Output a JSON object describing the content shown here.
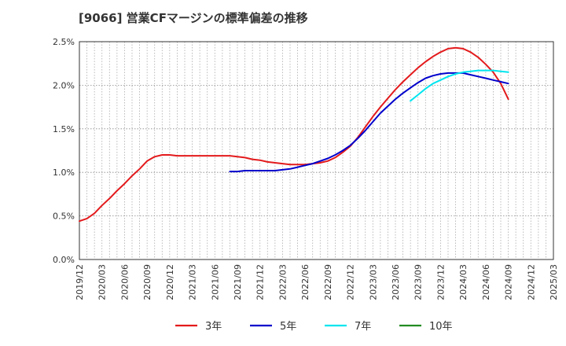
{
  "chart_data": {
    "type": "line",
    "title": "[9066]  営業CFマージンの標準偏差の推移",
    "xlabel": "",
    "ylabel": "",
    "ylim": [
      0,
      2.5
    ],
    "y_unit": "%",
    "y_ticks": [
      "0.0%",
      "0.5%",
      "1.0%",
      "1.5%",
      "2.0%",
      "2.5%"
    ],
    "x_ticks": [
      "2019/12",
      "2020/03",
      "2020/06",
      "2020/09",
      "2020/12",
      "2021/03",
      "2021/06",
      "2021/09",
      "2021/12",
      "2022/03",
      "2022/06",
      "2022/09",
      "2022/12",
      "2023/03",
      "2023/06",
      "2023/09",
      "2023/12",
      "2024/03",
      "2024/06",
      "2024/09",
      "2024/12",
      "2025/03"
    ],
    "grid": true,
    "legend_position": "bottom",
    "series": [
      {
        "name": "3年",
        "color": "#e31a1c",
        "points": [
          [
            "2019/12",
            0.44
          ],
          [
            "2020/01",
            0.47
          ],
          [
            "2020/02",
            0.53
          ],
          [
            "2020/03",
            0.62
          ],
          [
            "2020/04",
            0.7
          ],
          [
            "2020/05",
            0.79
          ],
          [
            "2020/06",
            0.87
          ],
          [
            "2020/07",
            0.96
          ],
          [
            "2020/08",
            1.04
          ],
          [
            "2020/09",
            1.13
          ],
          [
            "2020/10",
            1.18
          ],
          [
            "2020/11",
            1.2
          ],
          [
            "2020/12",
            1.2
          ],
          [
            "2021/01",
            1.19
          ],
          [
            "2021/02",
            1.19
          ],
          [
            "2021/03",
            1.19
          ],
          [
            "2021/04",
            1.19
          ],
          [
            "2021/05",
            1.19
          ],
          [
            "2021/06",
            1.19
          ],
          [
            "2021/07",
            1.19
          ],
          [
            "2021/08",
            1.19
          ],
          [
            "2021/09",
            1.18
          ],
          [
            "2021/10",
            1.17
          ],
          [
            "2021/11",
            1.15
          ],
          [
            "2021/12",
            1.14
          ],
          [
            "2022/01",
            1.12
          ],
          [
            "2022/02",
            1.11
          ],
          [
            "2022/03",
            1.1
          ],
          [
            "2022/04",
            1.09
          ],
          [
            "2022/05",
            1.09
          ],
          [
            "2022/06",
            1.09
          ],
          [
            "2022/07",
            1.1
          ],
          [
            "2022/08",
            1.11
          ],
          [
            "2022/09",
            1.13
          ],
          [
            "2022/10",
            1.17
          ],
          [
            "2022/11",
            1.23
          ],
          [
            "2022/12",
            1.3
          ],
          [
            "2023/01",
            1.4
          ],
          [
            "2023/02",
            1.52
          ],
          [
            "2023/03",
            1.64
          ],
          [
            "2023/04",
            1.75
          ],
          [
            "2023/05",
            1.85
          ],
          [
            "2023/06",
            1.95
          ],
          [
            "2023/07",
            2.04
          ],
          [
            "2023/08",
            2.12
          ],
          [
            "2023/09",
            2.2
          ],
          [
            "2023/10",
            2.27
          ],
          [
            "2023/11",
            2.33
          ],
          [
            "2023/12",
            2.38
          ],
          [
            "2024/01",
            2.42
          ],
          [
            "2024/02",
            2.43
          ],
          [
            "2024/03",
            2.42
          ],
          [
            "2024/04",
            2.38
          ],
          [
            "2024/05",
            2.32
          ],
          [
            "2024/06",
            2.24
          ],
          [
            "2024/07",
            2.15
          ],
          [
            "2024/08",
            2.02
          ],
          [
            "2024/09",
            1.84
          ]
        ]
      },
      {
        "name": "5年",
        "color": "#0000cc",
        "points": [
          [
            "2021/08",
            1.01
          ],
          [
            "2021/09",
            1.01
          ],
          [
            "2021/10",
            1.02
          ],
          [
            "2021/11",
            1.02
          ],
          [
            "2021/12",
            1.02
          ],
          [
            "2022/01",
            1.02
          ],
          [
            "2022/02",
            1.02
          ],
          [
            "2022/03",
            1.03
          ],
          [
            "2022/04",
            1.04
          ],
          [
            "2022/05",
            1.06
          ],
          [
            "2022/06",
            1.08
          ],
          [
            "2022/07",
            1.1
          ],
          [
            "2022/08",
            1.13
          ],
          [
            "2022/09",
            1.16
          ],
          [
            "2022/10",
            1.2
          ],
          [
            "2022/11",
            1.25
          ],
          [
            "2022/12",
            1.31
          ],
          [
            "2023/01",
            1.39
          ],
          [
            "2023/02",
            1.48
          ],
          [
            "2023/03",
            1.58
          ],
          [
            "2023/04",
            1.68
          ],
          [
            "2023/05",
            1.76
          ],
          [
            "2023/06",
            1.84
          ],
          [
            "2023/07",
            1.91
          ],
          [
            "2023/08",
            1.97
          ],
          [
            "2023/09",
            2.03
          ],
          [
            "2023/10",
            2.08
          ],
          [
            "2023/11",
            2.11
          ],
          [
            "2023/12",
            2.13
          ],
          [
            "2024/01",
            2.14
          ],
          [
            "2024/02",
            2.14
          ],
          [
            "2024/03",
            2.14
          ],
          [
            "2024/04",
            2.12
          ],
          [
            "2024/05",
            2.1
          ],
          [
            "2024/06",
            2.08
          ],
          [
            "2024/07",
            2.06
          ],
          [
            "2024/08",
            2.04
          ],
          [
            "2024/09",
            2.02
          ]
        ]
      },
      {
        "name": "7年",
        "color": "#00e5ee",
        "points": [
          [
            "2023/08",
            1.82
          ],
          [
            "2023/09",
            1.89
          ],
          [
            "2023/10",
            1.96
          ],
          [
            "2023/11",
            2.02
          ],
          [
            "2023/12",
            2.06
          ],
          [
            "2024/01",
            2.1
          ],
          [
            "2024/02",
            2.13
          ],
          [
            "2024/03",
            2.15
          ],
          [
            "2024/04",
            2.16
          ],
          [
            "2024/05",
            2.17
          ],
          [
            "2024/06",
            2.17
          ],
          [
            "2024/07",
            2.17
          ],
          [
            "2024/08",
            2.16
          ],
          [
            "2024/09",
            2.15
          ]
        ]
      },
      {
        "name": "10年",
        "color": "#228b22",
        "points": []
      }
    ]
  }
}
